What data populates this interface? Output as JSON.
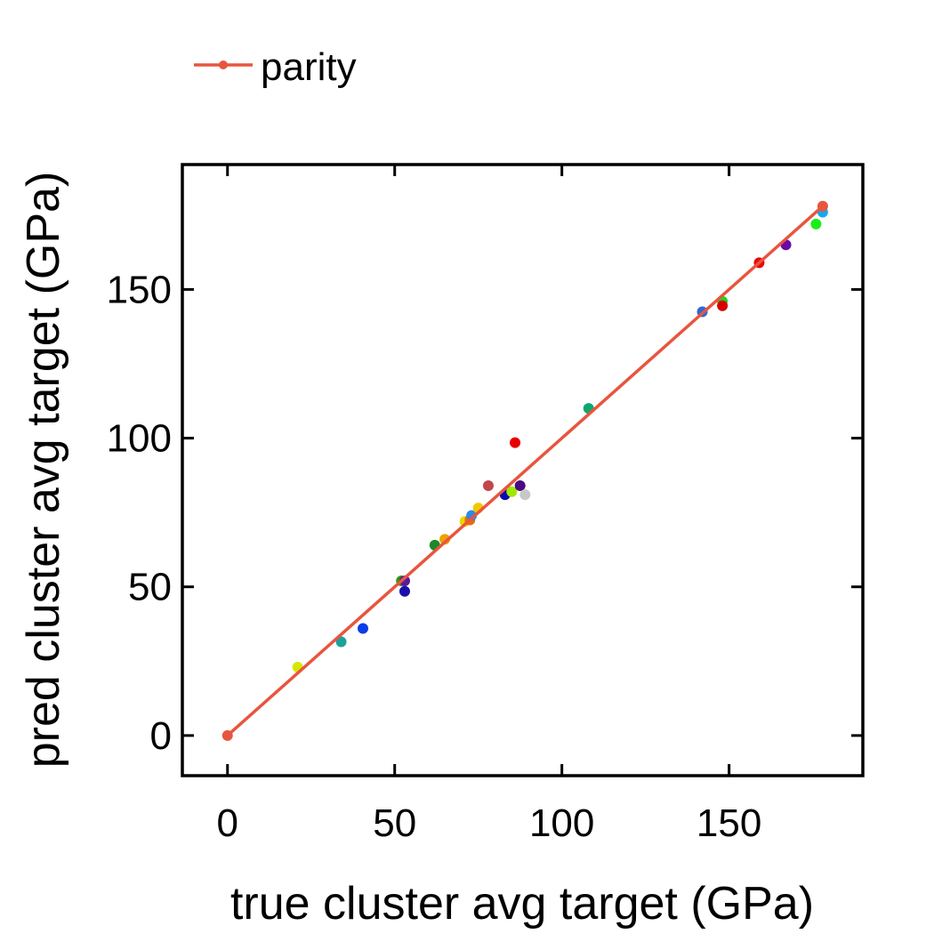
{
  "chart_data": {
    "type": "scatter",
    "xlabel": "true cluster avg target (GPa)",
    "ylabel": "pred cluster avg target (GPa)",
    "xlim": [
      -13.5,
      190
    ],
    "ylim": [
      -13.5,
      192
    ],
    "xticks": [
      0,
      50,
      100,
      150
    ],
    "yticks": [
      0,
      50,
      100,
      150
    ],
    "grid": false,
    "legend_position": "top-left",
    "series": [
      {
        "name": "parity",
        "kind": "line",
        "color": "#e8553e",
        "x": [
          0,
          178
        ],
        "y": [
          0,
          178
        ]
      }
    ],
    "points": [
      {
        "x": 21,
        "y": 23,
        "color": "#d4e800"
      },
      {
        "x": 34,
        "y": 31.5,
        "color": "#1aa39a"
      },
      {
        "x": 40.5,
        "y": 36,
        "color": "#0a3de8"
      },
      {
        "x": 52,
        "y": 52,
        "color": "#2a9a10"
      },
      {
        "x": 53,
        "y": 52,
        "color": "#5a1a9a"
      },
      {
        "x": 53,
        "y": 48.5,
        "color": "#1a10a8"
      },
      {
        "x": 62,
        "y": 64,
        "color": "#1a8a2a"
      },
      {
        "x": 65,
        "y": 66,
        "color": "#f0a000"
      },
      {
        "x": 71,
        "y": 72,
        "color": "#e8d800"
      },
      {
        "x": 72.5,
        "y": 72.5,
        "color": "#f06a00"
      },
      {
        "x": 73,
        "y": 74,
        "color": "#2a8ae8"
      },
      {
        "x": 75,
        "y": 76.5,
        "color": "#f0c800"
      },
      {
        "x": 78,
        "y": 84,
        "color": "#c0484a"
      },
      {
        "x": 83,
        "y": 81,
        "color": "#0a0ab0"
      },
      {
        "x": 85,
        "y": 82,
        "color": "#a0e800"
      },
      {
        "x": 86,
        "y": 98.5,
        "color": "#e80000"
      },
      {
        "x": 87.5,
        "y": 84,
        "color": "#4a0a80"
      },
      {
        "x": 89,
        "y": 81,
        "color": "#c8c8c8"
      },
      {
        "x": 108,
        "y": 110,
        "color": "#0aa870"
      },
      {
        "x": 142,
        "y": 142.5,
        "color": "#2a6ad8"
      },
      {
        "x": 148,
        "y": 146,
        "color": "#1ad81a"
      },
      {
        "x": 148,
        "y": 144.5,
        "color": "#d80000"
      },
      {
        "x": 159,
        "y": 159,
        "color": "#e80a0a"
      },
      {
        "x": 167,
        "y": 165,
        "color": "#6a0aa8"
      },
      {
        "x": 176,
        "y": 172,
        "color": "#1aee1a"
      },
      {
        "x": 178,
        "y": 176,
        "color": "#18a8e8"
      }
    ]
  }
}
